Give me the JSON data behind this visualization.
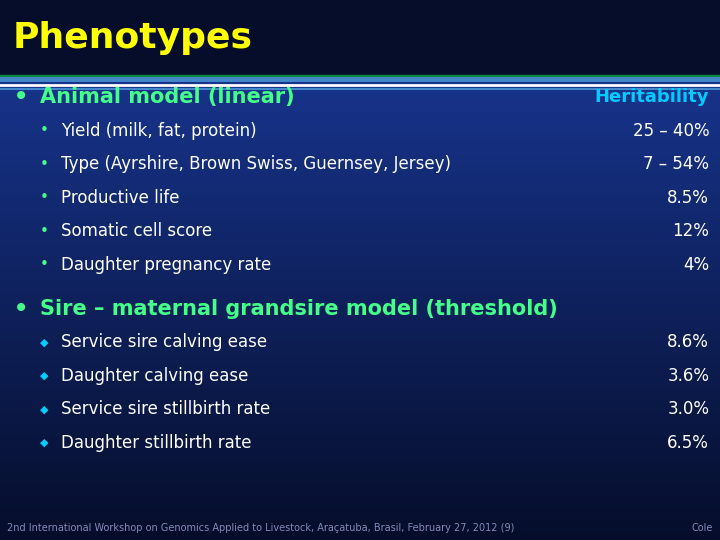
{
  "title": "Phenotypes",
  "title_color": "#FFFF00",
  "bg_color_top": "#050d2a",
  "bg_color_bottom": "#1a3a9c",
  "title_bar_color": "#050d2a",
  "separator_color1": "#008844",
  "separator_color2": "#4488cc",
  "separator_color3": "#ffffff",
  "footer_text": "2nd International Workshop on Genomics Applied to Livestock, Araçatuba, Brasil, February 27, 2012 (9)",
  "footer_right": "Cole",
  "footer_color": "#8888bb",
  "heritability_label": "Heritability",
  "heritability_color": "#00ccff",
  "bullet1_header": "Animal model (linear)",
  "bullet1_header_color": "#44ff88",
  "bullet1_bullet_color": "#44ff88",
  "bullet1_items": [
    "Yield (milk, fat, protein)",
    "Type (Ayrshire, Brown Swiss, Guernsey, Jersey)",
    "Productive life",
    "Somatic cell score",
    "Daughter pregnancy rate"
  ],
  "bullet1_values": [
    "25 – 40%",
    "7 – 54%",
    "8.5%",
    "12%",
    "4%"
  ],
  "bullet2_header": "Sire – maternal grandsire model (threshold)",
  "bullet2_header_color": "#44ff88",
  "bullet2_bullet_color": "#00ccff",
  "bullet2_items": [
    "Service sire calving ease",
    "Daughter calving ease",
    "Service sire stillbirth rate",
    "Daughter stillbirth rate"
  ],
  "bullet2_values": [
    "8.6%",
    "3.6%",
    "3.0%",
    "6.5%"
  ],
  "item_color": "#ffffff",
  "value_color": "#ffffff",
  "sub_bullet_color1": "#44ff88",
  "sub_bullet_color2": "#00ccff"
}
